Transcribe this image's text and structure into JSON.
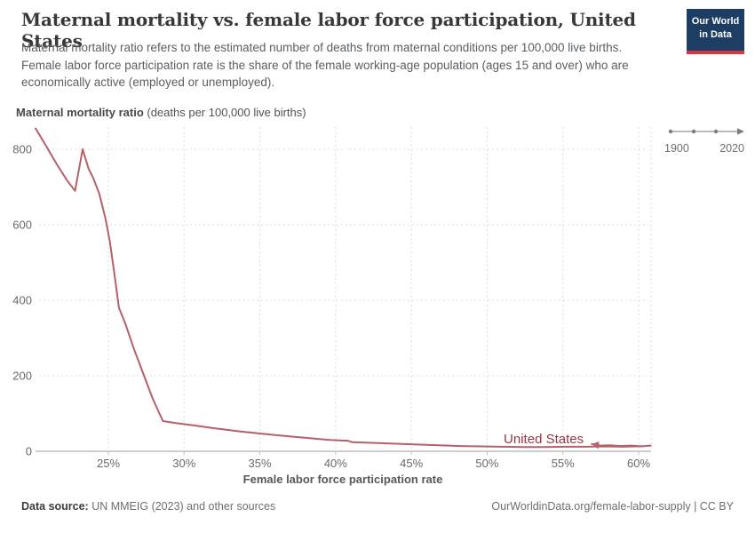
{
  "header": {
    "title": "Maternal mortality vs. female labor force participation, United States",
    "subtitle": "Maternal mortality ratio refers to the estimated number of deaths from maternal conditions per 100,000 live births. Female labor force participation rate is the share of the female working-age population (ages 15 and over) who are economically active (employed or unemployed)."
  },
  "logo": {
    "line1": "Our World",
    "line2": "in Data",
    "bg_color": "#1d3d63",
    "bar_color": "#d7383f"
  },
  "timeline": {
    "start": "1900",
    "end": "2020"
  },
  "axes": {
    "y_title_bold": "Maternal mortality ratio",
    "y_title_rest": " (deaths per 100,000 live births)",
    "x_title": "Female labor force participation rate"
  },
  "chart_data": {
    "type": "line",
    "title": "Maternal mortality vs. female labor force participation, United States",
    "xlabel": "Female labor force participation rate (%)",
    "ylabel": "Maternal mortality ratio (deaths per 100,000 live births)",
    "xlim": [
      25,
      60
    ],
    "ylim": [
      0,
      800
    ],
    "grid": true,
    "entity_label": "United States",
    "line_color": "#b5606a",
    "label_color": "#9c3540",
    "x_ticks": [
      {
        "value": 25,
        "label": "25%"
      },
      {
        "value": 30,
        "label": "30%"
      },
      {
        "value": 35,
        "label": "35%"
      },
      {
        "value": 40,
        "label": "40%"
      },
      {
        "value": 45,
        "label": "45%"
      },
      {
        "value": 50,
        "label": "50%"
      },
      {
        "value": 55,
        "label": "55%"
      },
      {
        "value": 60,
        "label": "60%"
      }
    ],
    "y_ticks": [
      {
        "value": 0,
        "label": "0"
      },
      {
        "value": 200,
        "label": "200"
      },
      {
        "value": 400,
        "label": "400"
      },
      {
        "value": 600,
        "label": "600"
      },
      {
        "value": 800,
        "label": "800"
      }
    ],
    "points": [
      [
        20.2,
        855
      ],
      [
        20.9,
        808
      ],
      [
        21.6,
        760
      ],
      [
        22.3,
        716
      ],
      [
        22.8,
        690
      ],
      [
        23.3,
        800
      ],
      [
        23.7,
        748
      ],
      [
        24.0,
        724
      ],
      [
        24.4,
        682
      ],
      [
        24.8,
        618
      ],
      [
        25.1,
        555
      ],
      [
        25.4,
        470
      ],
      [
        25.7,
        380
      ],
      [
        26.1,
        340
      ],
      [
        26.7,
        270
      ],
      [
        27.3,
        206
      ],
      [
        27.9,
        142
      ],
      [
        28.35,
        102
      ],
      [
        28.6,
        80
      ],
      [
        29.4,
        75
      ],
      [
        30.6,
        69
      ],
      [
        32.0,
        61
      ],
      [
        33.6,
        53
      ],
      [
        35.2,
        46
      ],
      [
        36.8,
        40
      ],
      [
        38.2,
        35
      ],
      [
        39.6,
        30
      ],
      [
        40.8,
        28
      ],
      [
        41.1,
        24
      ],
      [
        42.6,
        22
      ],
      [
        44.0,
        20
      ],
      [
        45.4,
        18
      ],
      [
        46.8,
        16
      ],
      [
        48.2,
        14
      ],
      [
        49.6,
        13
      ],
      [
        51.0,
        12
      ],
      [
        52.4,
        11
      ],
      [
        53.8,
        11
      ],
      [
        55.2,
        12
      ],
      [
        56.6,
        12
      ],
      [
        57.8,
        13
      ],
      [
        58.9,
        12
      ],
      [
        59.8,
        13
      ],
      [
        60.4,
        14
      ],
      [
        60.8,
        15
      ],
      [
        60.2,
        13
      ],
      [
        59.5,
        15
      ],
      [
        58.8,
        14
      ],
      [
        58.1,
        16
      ],
      [
        57.5,
        15
      ],
      [
        57.2,
        17
      ],
      [
        56.9,
        19
      ]
    ]
  },
  "footer": {
    "source_bold": "Data source:",
    "source_rest": " UN MMEIG (2023) and other sources",
    "right": "OurWorldinData.org/female-labor-supply | CC BY"
  }
}
